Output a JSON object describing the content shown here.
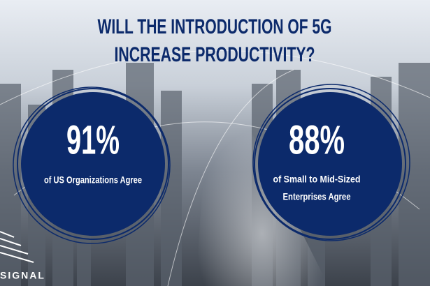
{
  "title": {
    "lines": [
      "WILL THE INTRODUCTION OF 5G",
      "INCREASE PRODUCTIVITY?"
    ]
  },
  "stats": [
    {
      "value": "91%",
      "label_lines": [
        "of US Organizations Agree"
      ]
    },
    {
      "value": "88%",
      "label_lines": [
        "of Small to Mid-Sized",
        "Enterprises Agree"
      ]
    }
  ],
  "logo": {
    "text": "SIGNAL"
  }
}
